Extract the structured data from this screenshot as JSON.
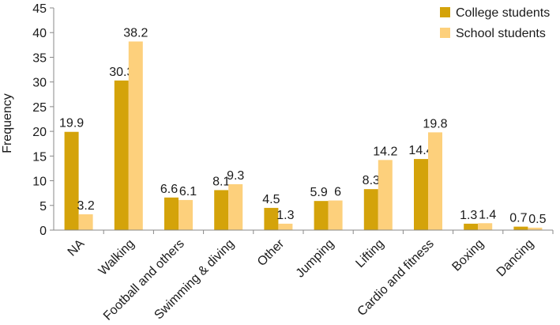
{
  "chart_data": {
    "type": "bar",
    "ylabel": "Frequency",
    "ylim": [
      0,
      45
    ],
    "yticks": [
      0,
      5,
      10,
      15,
      20,
      25,
      30,
      35,
      40,
      45
    ],
    "legend_position": "top-right",
    "categories": [
      "NA",
      "Walking",
      "Football and others",
      "Swimming & diving",
      "Other",
      "Jumping",
      "Lifting",
      "Cardio and fitness",
      "Boxing",
      "Dancing"
    ],
    "series": [
      {
        "name": "College students",
        "color": "#D4A30A",
        "values": [
          19.9,
          30.3,
          6.6,
          8.1,
          4.5,
          5.9,
          8.3,
          14.4,
          1.3,
          0.7
        ]
      },
      {
        "name": "School students",
        "color": "#FDD07C",
        "values": [
          3.2,
          38.2,
          6.1,
          9.3,
          1.3,
          6,
          14.2,
          19.8,
          1.4,
          0.5
        ]
      }
    ]
  }
}
